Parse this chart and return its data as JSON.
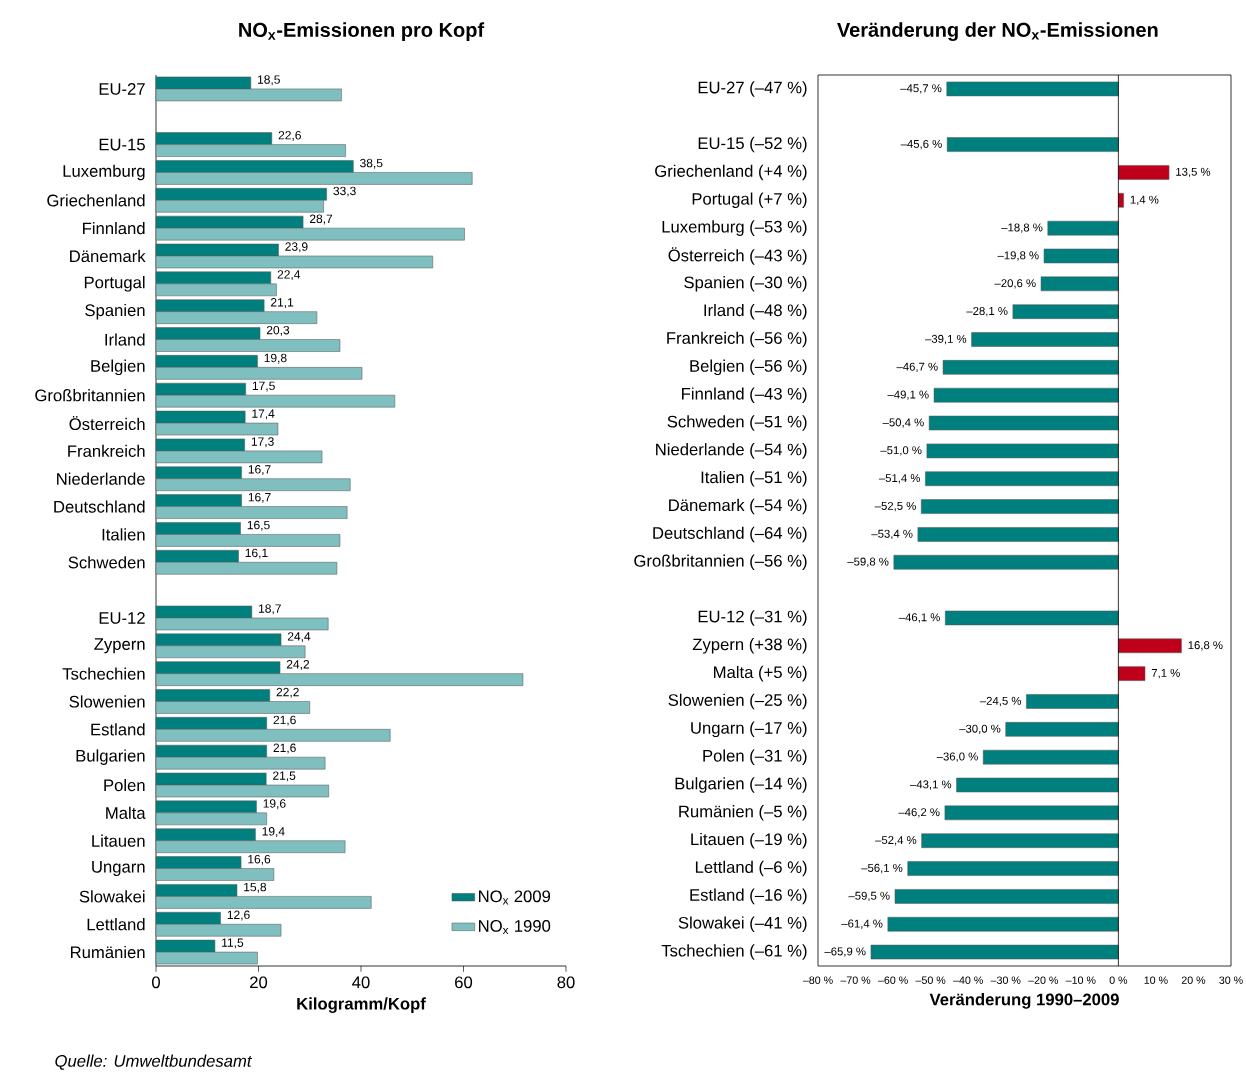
{
  "chart_data": [
    {
      "type": "bar",
      "orientation": "horizontal",
      "title": "NO$_{x}$-Emissionen pro Kopf",
      "xlabel": "Kilogramm/Kopf",
      "categories": [
        "EU-27",
        null,
        "EU-15",
        "Luxemburg",
        "Griechenland",
        "Finnland",
        "Dänemark",
        "Portugal",
        "Spanien",
        "Irland",
        "Belgien",
        "Großbritannien",
        "Österreich",
        "Frankreich",
        "Niederlande",
        "Deutschland",
        "Italien",
        "Schweden",
        null,
        "EU-12",
        "Zypern",
        "Tschechien",
        "Slowenien",
        "Estland",
        "Bulgarien",
        "Polen",
        "Malta",
        "Litauen",
        "Ungarn",
        "Slowakei",
        "Lettland",
        "Rumänien"
      ],
      "series": [
        {
          "name": "NO$_{x}$ 2009",
          "color": "#007f7f",
          "values": [
            18.5,
            null,
            22.6,
            38.5,
            33.3,
            28.7,
            23.9,
            22.4,
            21.1,
            20.3,
            19.8,
            17.5,
            17.4,
            17.3,
            16.7,
            16.7,
            16.5,
            16.1,
            null,
            18.7,
            24.4,
            24.2,
            22.2,
            21.6,
            21.6,
            21.5,
            19.6,
            19.4,
            16.6,
            15.8,
            12.6,
            11.5
          ],
          "value_labels": [
            "18,5",
            null,
            "22,6",
            "38,5",
            "33,3",
            "28,7",
            "23,9",
            "22,4",
            "21,1",
            "20,3",
            "19,8",
            "17,5",
            "17,4",
            "17,3",
            "16,7",
            "16,7",
            "16,5",
            "16,1",
            null,
            "18,7",
            "24,4",
            "24,2",
            "22,2",
            "21,6",
            "21,6",
            "21,5",
            "19,6",
            "19,4",
            "16,6",
            "15,8",
            "12,6",
            "11,5"
          ]
        },
        {
          "name": "NO$_{x}$ 1990",
          "color": "#80bfbf",
          "values": [
            36.2,
            null,
            37.0,
            61.7,
            32.7,
            60.2,
            54.0,
            23.5,
            31.4,
            35.9,
            40.2,
            46.6,
            23.8,
            32.4,
            37.9,
            37.3,
            35.9,
            35.3,
            null,
            33.6,
            29.1,
            71.6,
            30.0,
            45.7,
            33.0,
            33.7,
            21.6,
            36.9,
            23.0,
            42.0,
            24.4,
            19.8
          ]
        }
      ],
      "xlim": [
        0,
        80
      ],
      "xticks": [
        0,
        20,
        40,
        60,
        80
      ],
      "legend": "bottom right",
      "annotations": [
        "Quelle: Umweltbundesamt"
      ]
    },
    {
      "type": "bar",
      "orientation": "horizontal",
      "title": "Veränderung der NO$_{x}$-Emissionen",
      "xlabel": "Veränderung  1990–2009",
      "categories": [
        "EU-27 (–47 %)",
        null,
        "EU-15 (–52 %)",
        "Griechenland (+4 %)",
        "Portugal (+7 %)",
        "Luxemburg (–53 %)",
        "Österreich (–43 %)",
        "Spanien (–30 %)",
        "Irland (–48 %)",
        "Frankreich (–56 %)",
        "Belgien (–56 %)",
        "Finnland (–43 %)",
        "Schweden (–51 %)",
        "Niederlande (–54 %)",
        "Italien (–51 %)",
        "Dänemark (–54 %)",
        "Deutschland (–64 %)",
        "Großbritannien (–56 %)",
        null,
        "EU-12 (–31 %)",
        "Zypern (+38 %)",
        "Malta (+5 %)",
        "Slowenien (–25 %)",
        "Ungarn (–17 %)",
        "Polen (–31 %)",
        "Bulgarien (–14 %)",
        "Rumänien (–5 %)",
        "Litauen (–19 %)",
        "Lettland (–6 %)",
        "Estland (–16 %)",
        "Slowakei (–41 %)",
        "Tschechien (–61 %)"
      ],
      "values": [
        -45.7,
        null,
        -45.6,
        13.5,
        1.4,
        -18.8,
        -19.8,
        -20.6,
        -28.1,
        -39.1,
        -46.7,
        -49.1,
        -50.4,
        -51.0,
        -51.4,
        -52.5,
        -53.4,
        -59.8,
        null,
        -46.1,
        16.8,
        7.1,
        -24.5,
        -30.0,
        -36.0,
        -43.1,
        -46.2,
        -52.4,
        -56.1,
        -59.5,
        -61.4,
        -65.9
      ],
      "colors": [
        "#007f7f",
        null,
        "#007f7f",
        "#c0001a",
        "#c0001a",
        "#007f7f",
        "#007f7f",
        "#007f7f",
        "#007f7f",
        "#007f7f",
        "#007f7f",
        "#007f7f",
        "#007f7f",
        "#007f7f",
        "#007f7f",
        "#007f7f",
        "#007f7f",
        "#007f7f",
        null,
        "#007f7f",
        "#c0001a",
        "#c0001a",
        "#007f7f",
        "#007f7f",
        "#007f7f",
        "#007f7f",
        "#007f7f",
        "#007f7f",
        "#007f7f",
        "#007f7f",
        "#007f7f",
        "#007f7f"
      ],
      "value_labels": [
        "–45,7 %",
        null,
        "–45,6 %",
        "13,5 %",
        "1,4 %",
        "–18,8 %",
        "–19,8 %",
        "–20,6 %",
        "–28,1 %",
        "–39,1 %",
        "–46,7 %",
        "–49,1 %",
        "–50,4 %",
        "–51,0 %",
        "–51,4 %",
        "–52,5 %",
        "–53,4 %",
        "–59,8 %",
        null,
        "–46,1 %",
        "16,8 %",
        "7,1 %",
        "–24,5 %",
        "–30,0 %",
        "–36,0 %",
        "–43,1 %",
        "–46,2 %",
        "–52,4 %",
        "–56,1 %",
        "–59,5 %",
        "–61,4 %",
        "–65,9 %"
      ],
      "xlim": [
        -80,
        30
      ],
      "xticks": [
        {
          "value": -80,
          "label": "–80 %"
        },
        {
          "value": -70,
          "label": "–70 %"
        },
        {
          "value": -60,
          "label": "–60 %"
        },
        {
          "value": -50,
          "label": "–50 %"
        },
        {
          "value": -40,
          "label": "–40 %"
        },
        {
          "value": -30,
          "label": "–30 %"
        },
        {
          "value": -20,
          "label": "–20 %"
        },
        {
          "value": -10,
          "label": "–10 %"
        },
        {
          "value": 0,
          "label": "0 %"
        },
        {
          "value": 10,
          "label": "10 %"
        },
        {
          "value": 20,
          "label": "20 %"
        },
        {
          "value": 30,
          "label": "30 %"
        }
      ]
    }
  ]
}
